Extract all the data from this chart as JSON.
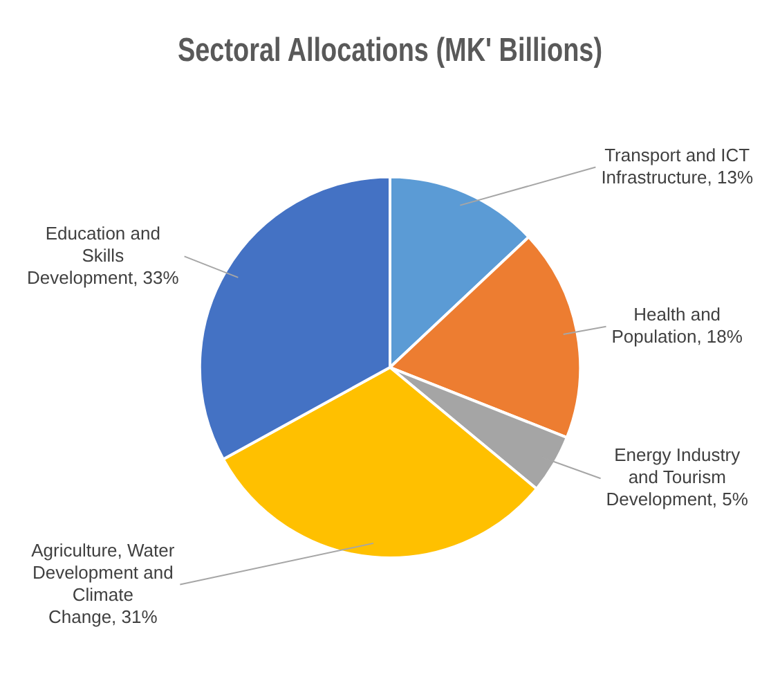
{
  "chart_data": {
    "type": "pie",
    "title": "Sectoral Allocations (MK' Billions)",
    "categories": [
      "Transport and ICT Infrastructure",
      "Health and Population",
      "Energy Industry and Tourism Development",
      "Agriculture, Water Development and Climate Change",
      "Education and Skills Development"
    ],
    "values": [
      13,
      18,
      5,
      31,
      33
    ],
    "value_labels": [
      "13%",
      "18%",
      "5%",
      "31%",
      "33%"
    ],
    "colors": [
      "#5b9bd5",
      "#ed7d31",
      "#a5a5a5",
      "#ffc000",
      "#4472c4"
    ],
    "legend": false
  }
}
